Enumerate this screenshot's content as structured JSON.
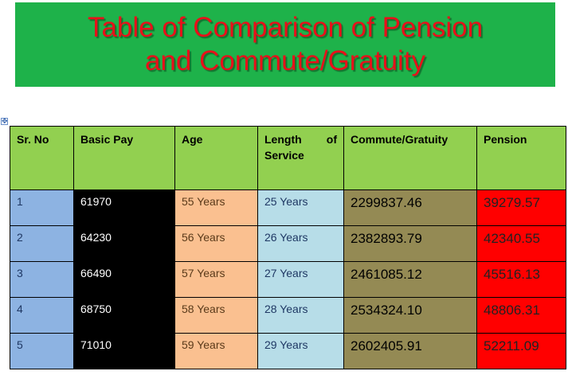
{
  "title": {
    "line1": "Table of Comparison of Pension",
    "line2": "and Commute/Gratuity"
  },
  "colors": {
    "banner": "#1eb24a",
    "title_text": "#e8101a",
    "header": "#92d050",
    "sr_col": "#8db3e2",
    "basic_col": "#000000",
    "age_col": "#fac090",
    "length_col": "#b7dde8",
    "commute_col": "#948a54",
    "pension_col": "#ff0000"
  },
  "table": {
    "headers": {
      "sr": "Sr. No",
      "basic": "Basic Pay",
      "age": "Age",
      "length": "Length of Service",
      "commute": "Commute/Gratuity",
      "pension": "Pension"
    },
    "rows": [
      {
        "sr": "1",
        "basic": "61970",
        "age": "55 Years",
        "length": "25 Years",
        "commute": "2299837.46",
        "pension": "39279.57"
      },
      {
        "sr": "2",
        "basic": "64230",
        "age": "56 Years",
        "length": "26 Years",
        "commute": "2382893.79",
        "pension": "42340.55"
      },
      {
        "sr": "3",
        "basic": "66490",
        "age": "57 Years",
        "length": "27 Years",
        "commute": "2461085.12",
        "pension": "45516.13"
      },
      {
        "sr": "4",
        "basic": "68750",
        "age": "58 Years",
        "length": "28 Years",
        "commute": "2534324.10",
        "pension": "48806.31"
      },
      {
        "sr": "5",
        "basic": "71010",
        "age": "59 Years",
        "length": "29 Years",
        "commute": "2602405.91",
        "pension": "52211.09"
      }
    ]
  }
}
